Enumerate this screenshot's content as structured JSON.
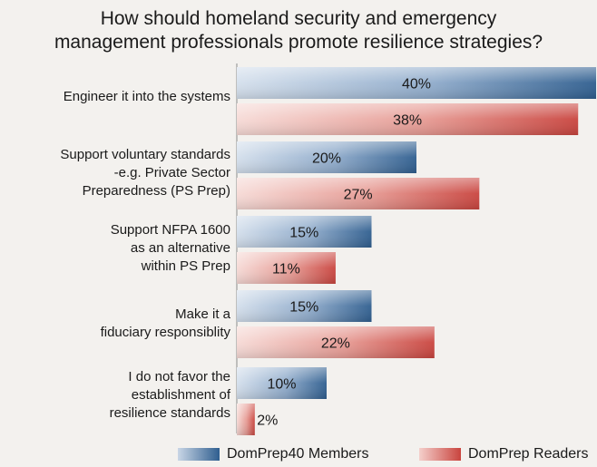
{
  "chart_data": {
    "type": "bar",
    "orientation": "horizontal",
    "title": "How should homeland security and emergency management professionals promote resilience strategies?",
    "title_lines": [
      "How should homeland security and emergency",
      "management professionals promote resilience strategies?"
    ],
    "categories": [
      "Engineer it into the systems",
      "Support voluntary standards -e.g. Private Sector Preparedness (PS Prep)",
      "Support NFPA 1600 as an alternative within PS Prep",
      "Make it a fiduciary responsiblity",
      "I do not favor the establishment of resilience standards"
    ],
    "category_lines": [
      [
        "Engineer it into the systems"
      ],
      [
        "Support voluntary standards",
        "-e.g. Private Sector",
        "Preparedness (PS Prep)"
      ],
      [
        "Support NFPA 1600",
        "as an alternative",
        "within PS Prep"
      ],
      [
        "Make it a",
        "fiduciary responsiblity"
      ],
      [
        "I do not favor the",
        "establishment of",
        "resilience standards"
      ]
    ],
    "series": [
      {
        "name": "DomPrep40 Members",
        "values": [
          40,
          20,
          15,
          15,
          10
        ],
        "labels": [
          "40%",
          "20%",
          "15%",
          "15%",
          "10%"
        ]
      },
      {
        "name": "DomPrep Readers",
        "values": [
          38,
          27,
          11,
          22,
          2
        ],
        "labels": [
          "38%",
          "27%",
          "11%",
          "22%",
          "2%"
        ]
      }
    ],
    "xlim": [
      0,
      40
    ],
    "grid": false,
    "legend_position": "bottom",
    "colors": {
      "members": "#2f5e8f",
      "readers": "#c9443e"
    }
  }
}
